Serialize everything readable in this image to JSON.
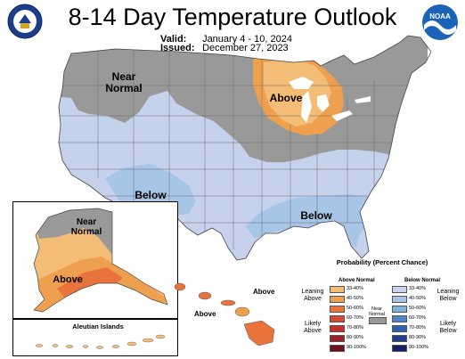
{
  "title": "8-14 Day Temperature Outlook",
  "valid_label": "Valid:",
  "valid_value": "January 4 - 10, 2024",
  "issued_label": "Issued:",
  "issued_value": "December 27, 2023",
  "noaa_logo_text": "NOAA",
  "map_labels": {
    "near_normal_conus": "Near Normal",
    "above_conus": "Above",
    "below_west": "Below",
    "below_southeast": "Below",
    "near_normal_alaska": "Near Normal",
    "above_alaska": "Above",
    "aleutian_title": "Aleutian Islands",
    "hawaii_above_1": "Above",
    "hawaii_above_2": "Above"
  },
  "legend": {
    "title": "Probability (Percent Chance)",
    "above_header": "Above Normal",
    "below_header": "Below Normal",
    "near_normal": "Near Normal",
    "leaning_above": "Leaning Above",
    "likely_above": "Likely Above",
    "leaning_below": "Leaning Below",
    "likely_below": "Likely Below",
    "ranges": [
      "33-40%",
      "40-50%",
      "50-60%",
      "60-70%",
      "70-80%",
      "80-90%",
      "90-100%"
    ],
    "above_colors": [
      "#f3bd77",
      "#eea04f",
      "#e8743c",
      "#d84a33",
      "#c22f2f",
      "#9c1f27",
      "#6d101a"
    ],
    "below_colors": [
      "#c6d2ec",
      "#a7c5e7",
      "#7fb0df",
      "#4f86c6",
      "#2e62b0",
      "#233e8f",
      "#171e63"
    ],
    "near_normal_color": "#999999"
  },
  "colors": {
    "near_normal": "#999999",
    "above_33_40": "#f3bd77",
    "above_40_50": "#eea04f",
    "leaning_below": "#c6d2ec",
    "below_40_50": "#a7c5e7"
  }
}
